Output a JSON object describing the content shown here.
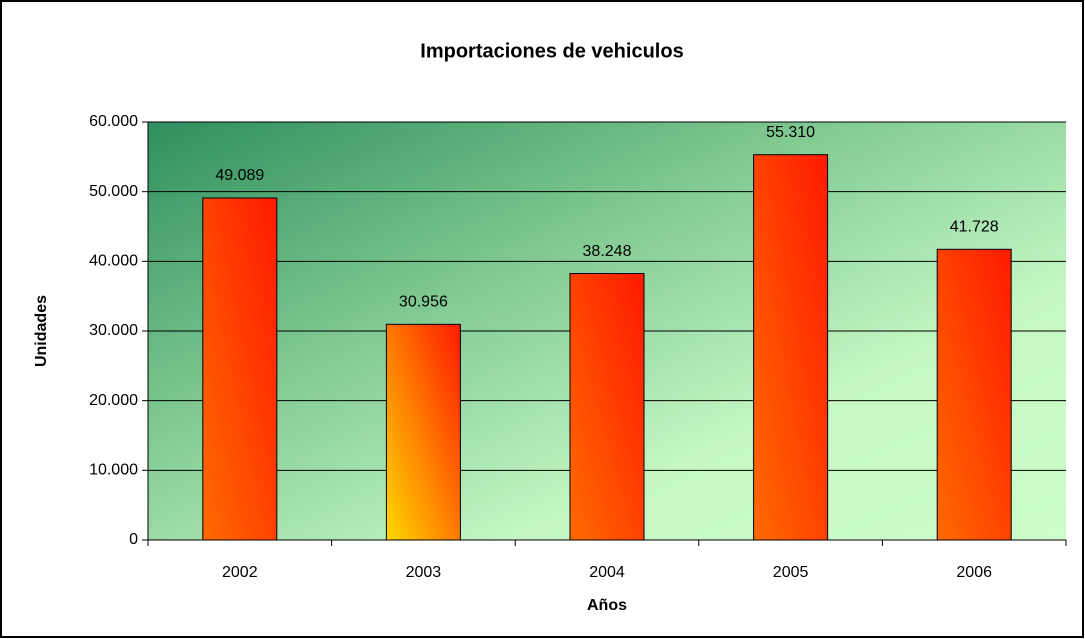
{
  "chart_data": {
    "type": "bar",
    "title": "Importaciones  de vehiculos",
    "x_label": "Años",
    "y_label": "Unidades",
    "categories": [
      "2002",
      "2003",
      "2004",
      "2005",
      "2006"
    ],
    "values": [
      49089,
      30956,
      38248,
      55310,
      41728
    ],
    "value_labels": [
      "49.089",
      "30.956",
      "38.248",
      "55.310",
      "41.728"
    ],
    "colors": [
      "#ff6a00",
      "#ffd800",
      "#ff6a00",
      "#ff6a00",
      "#ff6a00"
    ],
    "ylim": [
      0,
      60000
    ],
    "yticks": [
      0,
      {
        "value": 10000,
        "label": "10.000"
      },
      {
        "value": 20000,
        "label": "20.000"
      },
      {
        "value": 30000,
        "label": "30.000"
      },
      {
        "value": 40000,
        "label": "40.000"
      },
      {
        "value": 50000,
        "label": "50.000"
      },
      {
        "value": 60000,
        "label": "60.000"
      }
    ],
    "grid": true
  }
}
